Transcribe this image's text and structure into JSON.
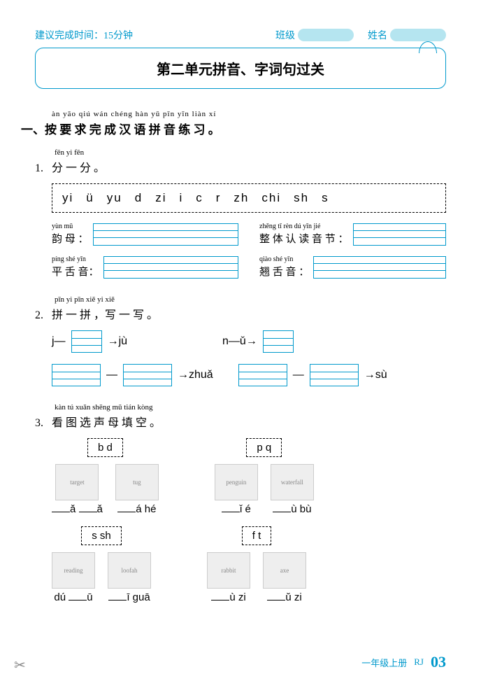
{
  "header": {
    "time_label": "建议完成时间：15分钟",
    "class_label": "班级",
    "name_label": "姓名"
  },
  "title": "第二单元拼音、字词句过关",
  "section1": {
    "pinyin": "àn yāo qiú wán chéng hàn yǔ pīn yīn liàn xí",
    "text": "一、按 要 求 完  成  汉 语 拼 音 练 习 。",
    "sub1": {
      "num": "1.",
      "pinyin": "fēn yi fēn",
      "text": "分 一 分 。",
      "letters": [
        "yi",
        "ü",
        "yu",
        "d",
        "zi",
        "i",
        "c",
        "r",
        "zh",
        "chi",
        "sh",
        "s"
      ],
      "fields": [
        {
          "pinyin": "yùn mǔ",
          "label": "韵 母 ："
        },
        {
          "pinyin": "zhěng tǐ rèn dú yīn jié",
          "label": "整 体 认 读 音 节 ："
        },
        {
          "pinyin": "píng shé yīn",
          "label": "平 舌 音："
        },
        {
          "pinyin": "qiào shé yīn",
          "label": "翘 舌 音 ："
        }
      ]
    },
    "sub2": {
      "num": "2.",
      "pinyin": "pīn yi pīn    xiě yi xiě",
      "text": "拼 一 拼 ，写 一 写 。",
      "row1_a": "j—",
      "row1_a_result": "→jù",
      "row1_b": "n—ǔ→",
      "row2_a_result": "→zhuǎ",
      "row2_b_result": "→sù"
    },
    "sub3": {
      "num": "3.",
      "pinyin": "kàn  tú xuǎn shēng mǔ tián kòng",
      "text": "看 图 选  声  母 填 空  。",
      "groups": [
        {
          "choice": "b    d",
          "items": [
            {
              "img": "target",
              "ans_parts": [
                "",
                "ǎ ",
                "",
                "ǎ"
              ]
            },
            {
              "img": "tug",
              "ans_parts": [
                "",
                "á hé"
              ]
            }
          ]
        },
        {
          "choice": "p    q",
          "items": [
            {
              "img": "penguin",
              "ans_parts": [
                "",
                "ǐ é"
              ]
            },
            {
              "img": "waterfall",
              "ans_parts": [
                "",
                "ù bù"
              ]
            }
          ]
        },
        {
          "choice": "s    sh",
          "items": [
            {
              "img": "reading",
              "ans_parts": [
                "dú ",
                "",
                "ū"
              ]
            },
            {
              "img": "loofah",
              "ans_parts": [
                "",
                "ī guā"
              ]
            }
          ]
        },
        {
          "choice": "f    t",
          "items": [
            {
              "img": "rabbit",
              "ans_parts": [
                "",
                "ù zi"
              ]
            },
            {
              "img": "axe",
              "ans_parts": [
                "",
                "ǔ zi"
              ]
            }
          ]
        }
      ]
    }
  },
  "footer": {
    "grade": "一年级上册",
    "series": "RJ",
    "page": "03"
  }
}
